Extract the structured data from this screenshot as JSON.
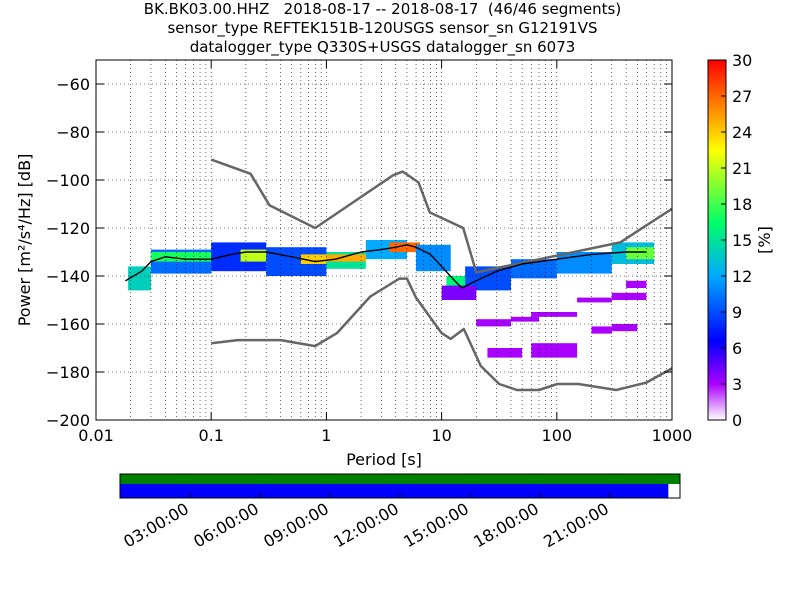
{
  "title": {
    "line1": "BK.BK03.00.HHZ   2018-08-17 -- 2018-08-17  (46/46 segments)",
    "line2": "sensor_type REFTEK151B-120USGS sensor_sn G12191VS",
    "line3": "datalogger_type Q330S+USGS datalogger_sn 6073"
  },
  "chart_data": {
    "type": "heatmap",
    "xlabel": "Period [s]",
    "ylabel": "Power [m²/s⁴/Hz] [dB]",
    "x_scale": "log",
    "xlim": [
      0.01,
      1000
    ],
    "ylim": [
      -200,
      -50
    ],
    "x_ticks": [
      {
        "value": 0.01,
        "label": "0.01"
      },
      {
        "value": 0.1,
        "label": "0.1"
      },
      {
        "value": 1,
        "label": "1"
      },
      {
        "value": 10,
        "label": "10"
      },
      {
        "value": 100,
        "label": "100"
      },
      {
        "value": 1000,
        "label": "1000"
      }
    ],
    "y_ticks": [
      -60,
      -80,
      -100,
      -120,
      -140,
      -160,
      -180,
      -200
    ],
    "colorbar": {
      "label": "[%]",
      "range": [
        0,
        30
      ],
      "ticks": [
        0,
        3,
        6,
        9,
        12,
        15,
        18,
        21,
        24,
        27,
        30
      ],
      "colors": [
        "#ffffff",
        "#aa00ff",
        "#0000ff",
        "#00aaff",
        "#00ff66",
        "#ffff00",
        "#ff0000"
      ]
    },
    "series": [
      {
        "kind": "high_noise_model",
        "x": [
          0.1,
          0.22,
          0.32,
          0.8,
          3.8,
          4.6,
          6.3,
          7.9,
          15.4,
          20,
          354.8,
          1000
        ],
        "y": [
          -91.5,
          -97.4,
          -110.5,
          -120.0,
          -98.0,
          -96.5,
          -101.0,
          -113.5,
          -120.0,
          -138.5,
          -126.0,
          -112.0
        ]
      },
      {
        "kind": "low_noise_model",
        "x": [
          0.1,
          0.17,
          0.4,
          0.8,
          1.24,
          2.4,
          4.3,
          5.0,
          6.0,
          10.0,
          12.0,
          15.6,
          21.9,
          31.6,
          45.0,
          70.0,
          101.0,
          154.0,
          328.0,
          600.0,
          1000.0
        ],
        "y": [
          -168.0,
          -166.7,
          -166.7,
          -169.2,
          -163.7,
          -148.6,
          -141.1,
          -141.1,
          -149.0,
          -163.8,
          -166.2,
          -162.1,
          -177.5,
          -185.0,
          -187.5,
          -187.5,
          -185.0,
          -185.0,
          -187.5,
          -184.4,
          -178.5
        ]
      },
      {
        "kind": "mode",
        "x": [
          0.018,
          0.025,
          0.03,
          0.04,
          0.06,
          0.1,
          0.15,
          0.2,
          0.3,
          0.5,
          0.8,
          1.2,
          2,
          3,
          4,
          5,
          6,
          8,
          10,
          13,
          15,
          20,
          30,
          50,
          100,
          200,
          400,
          600
        ],
        "y": [
          -142,
          -138,
          -134,
          -132,
          -133,
          -133,
          -131,
          -130,
          -130,
          -132,
          -134,
          -133,
          -130,
          -129,
          -128,
          -127,
          -128,
          -131,
          -136,
          -142,
          -145,
          -142,
          -138,
          -135,
          -133,
          -131,
          -130,
          -130
        ]
      }
    ],
    "density_cells": [
      {
        "x": [
          0.019,
          0.03
        ],
        "y": [
          -146,
          -136
        ],
        "pct": 14
      },
      {
        "x": [
          0.03,
          0.1
        ],
        "y": [
          -139,
          -129
        ],
        "pct": 10
      },
      {
        "x": [
          0.03,
          0.1
        ],
        "y": [
          -134,
          -130
        ],
        "pct": 17
      },
      {
        "x": [
          0.1,
          0.3
        ],
        "y": [
          -138,
          -126
        ],
        "pct": 8
      },
      {
        "x": [
          0.18,
          0.3
        ],
        "y": [
          -134,
          -129
        ],
        "pct": 21
      },
      {
        "x": [
          0.3,
          1.0
        ],
        "y": [
          -140,
          -128
        ],
        "pct": 9
      },
      {
        "x": [
          0.6,
          1.0
        ],
        "y": [
          -135,
          -131
        ],
        "pct": 24
      },
      {
        "x": [
          1.0,
          2.2
        ],
        "y": [
          -137,
          -130
        ],
        "pct": 15
      },
      {
        "x": [
          1.0,
          2.2
        ],
        "y": [
          -134,
          -131
        ],
        "pct": 25
      },
      {
        "x": [
          2.2,
          5.0
        ],
        "y": [
          -133,
          -125
        ],
        "pct": 12
      },
      {
        "x": [
          3.5,
          6.5
        ],
        "y": [
          -130,
          -126
        ],
        "pct": 27
      },
      {
        "x": [
          6.0,
          12.0
        ],
        "y": [
          -138,
          -127
        ],
        "pct": 11
      },
      {
        "x": [
          11.0,
          16.0
        ],
        "y": [
          -147,
          -140
        ],
        "pct": 16
      },
      {
        "x": [
          16.0,
          40.0
        ],
        "y": [
          -146,
          -136
        ],
        "pct": 9
      },
      {
        "x": [
          40.0,
          100.0
        ],
        "y": [
          -141,
          -133
        ],
        "pct": 10
      },
      {
        "x": [
          100.0,
          300.0
        ],
        "y": [
          -139,
          -130
        ],
        "pct": 11
      },
      {
        "x": [
          300.0,
          700.0
        ],
        "y": [
          -135,
          -126
        ],
        "pct": 13
      },
      {
        "x": [
          400.0,
          700.0
        ],
        "y": [
          -133,
          -128
        ],
        "pct": 19
      },
      {
        "x": [
          20.0,
          40.0
        ],
        "y": [
          -161,
          -158
        ],
        "pct": 3
      },
      {
        "x": [
          40.0,
          70.0
        ],
        "y": [
          -159,
          -157
        ],
        "pct": 3
      },
      {
        "x": [
          60.0,
          150.0
        ],
        "y": [
          -157,
          -155
        ],
        "pct": 3
      },
      {
        "x": [
          150.0,
          300.0
        ],
        "y": [
          -151,
          -149
        ],
        "pct": 3
      },
      {
        "x": [
          300.0,
          600.0
        ],
        "y": [
          -150,
          -147
        ],
        "pct": 3
      },
      {
        "x": [
          25.0,
          50.0
        ],
        "y": [
          -174,
          -170
        ],
        "pct": 3
      },
      {
        "x": [
          60.0,
          150.0
        ],
        "y": [
          -174,
          -168
        ],
        "pct": 3
      },
      {
        "x": [
          200.0,
          300.0
        ],
        "y": [
          -164,
          -161
        ],
        "pct": 3
      },
      {
        "x": [
          300.0,
          500.0
        ],
        "y": [
          -163,
          -160
        ],
        "pct": 3
      },
      {
        "x": [
          400.0,
          600.0
        ],
        "y": [
          -145,
          -142
        ],
        "pct": 3
      },
      {
        "x": [
          10.0,
          20.0
        ],
        "y": [
          -150,
          -144
        ],
        "pct": 4
      }
    ],
    "timeline": {
      "tick_labels": [
        "03:00:00",
        "06:00:00",
        "09:00:00",
        "12:00:00",
        "15:00:00",
        "18:00:00",
        "21:00:00"
      ],
      "tick_hours": [
        3,
        6,
        9,
        12,
        15,
        18,
        21
      ],
      "range_hours": [
        0,
        24
      ],
      "data_coverage_hours": [
        0,
        24
      ],
      "used_coverage_hours": [
        0,
        23.5
      ],
      "data_color": "#008000",
      "used_color": "#0000ff"
    }
  }
}
